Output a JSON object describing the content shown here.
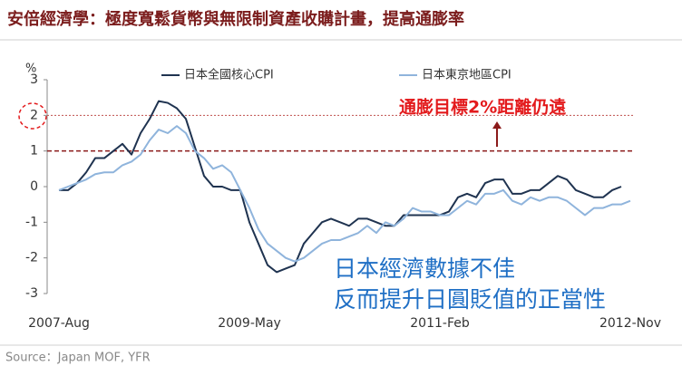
{
  "chart_data": {
    "type": "line",
    "title": "安倍經濟學：極度寬鬆貨幣與無限制資產收購計畫，提高通膨率",
    "y_label": "%",
    "source": "Source：Japan MOF, YFR",
    "categories": [
      "2007-Aug",
      null,
      null,
      null,
      null,
      null,
      null,
      null,
      null,
      null,
      null,
      null,
      null,
      null,
      null,
      null,
      null,
      null,
      null,
      null,
      null,
      "2009-May",
      null,
      null,
      null,
      null,
      null,
      null,
      null,
      null,
      null,
      null,
      null,
      null,
      null,
      null,
      null,
      null,
      null,
      null,
      null,
      null,
      "2011-Feb",
      null,
      null,
      null,
      null,
      null,
      null,
      null,
      null,
      null,
      null,
      null,
      null,
      null,
      null,
      null,
      null,
      null,
      null,
      null,
      null,
      "2012-Nov"
    ],
    "series": [
      {
        "name": "日本全國核心CPI",
        "color": "#1f3350",
        "values": [
          -0.1,
          -0.1,
          0.1,
          0.4,
          0.8,
          0.8,
          1.0,
          1.2,
          0.9,
          1.5,
          1.9,
          2.4,
          2.35,
          2.2,
          1.9,
          1.1,
          0.3,
          0.0,
          0.0,
          -0.1,
          -0.1,
          -1.0,
          -1.6,
          -2.2,
          -2.4,
          -2.3,
          -2.2,
          -1.6,
          -1.3,
          -1.0,
          -0.9,
          -1.0,
          -1.1,
          -0.9,
          -0.9,
          -1.0,
          -1.1,
          -1.1,
          -0.8,
          -0.8,
          -0.8,
          -0.8,
          -0.8,
          -0.7,
          -0.3,
          -0.2,
          -0.3,
          0.1,
          0.2,
          0.2,
          -0.2,
          -0.2,
          -0.1,
          -0.1,
          0.1,
          0.3,
          0.2,
          -0.1,
          -0.2,
          -0.3,
          -0.3,
          -0.1,
          0.0,
          null
        ]
      },
      {
        "name": "日本東京地區CPI",
        "color": "#8fb4dc",
        "values": [
          -0.1,
          0.0,
          0.1,
          0.2,
          0.35,
          0.4,
          0.4,
          0.6,
          0.7,
          0.9,
          1.3,
          1.6,
          1.5,
          1.7,
          1.5,
          1.0,
          0.8,
          0.5,
          0.6,
          0.4,
          -0.1,
          -0.6,
          -1.2,
          -1.6,
          -1.8,
          -2.0,
          -2.1,
          -2.0,
          -1.8,
          -1.6,
          -1.5,
          -1.5,
          -1.4,
          -1.3,
          -1.1,
          -1.3,
          -1.0,
          -1.1,
          -0.9,
          -0.6,
          -0.7,
          -0.7,
          -0.8,
          -0.8,
          -0.6,
          -0.4,
          -0.5,
          -0.2,
          -0.2,
          -0.1,
          -0.4,
          -0.5,
          -0.3,
          -0.4,
          -0.3,
          -0.3,
          -0.4,
          -0.6,
          -0.8,
          -0.6,
          -0.6,
          -0.5,
          -0.5,
          -0.4
        ]
      }
    ],
    "ylim": [
      -3,
      3
    ],
    "yticks": [
      -3,
      -2,
      -1,
      0,
      1,
      2,
      3
    ],
    "reference_lines": [
      {
        "value": 2,
        "style": "dotted",
        "color": "#c0504d"
      },
      {
        "value": 1,
        "style": "dashed",
        "color": "#8b1a1a"
      }
    ],
    "annotations": [
      {
        "text": "通膨目標2%距離仍遠",
        "color": "#e31a1c"
      },
      {
        "text": "日本經濟數據不佳",
        "color": "#1f6fc5"
      },
      {
        "text": "反而提升日圓貶值的正當性",
        "color": "#1f6fc5"
      }
    ]
  }
}
